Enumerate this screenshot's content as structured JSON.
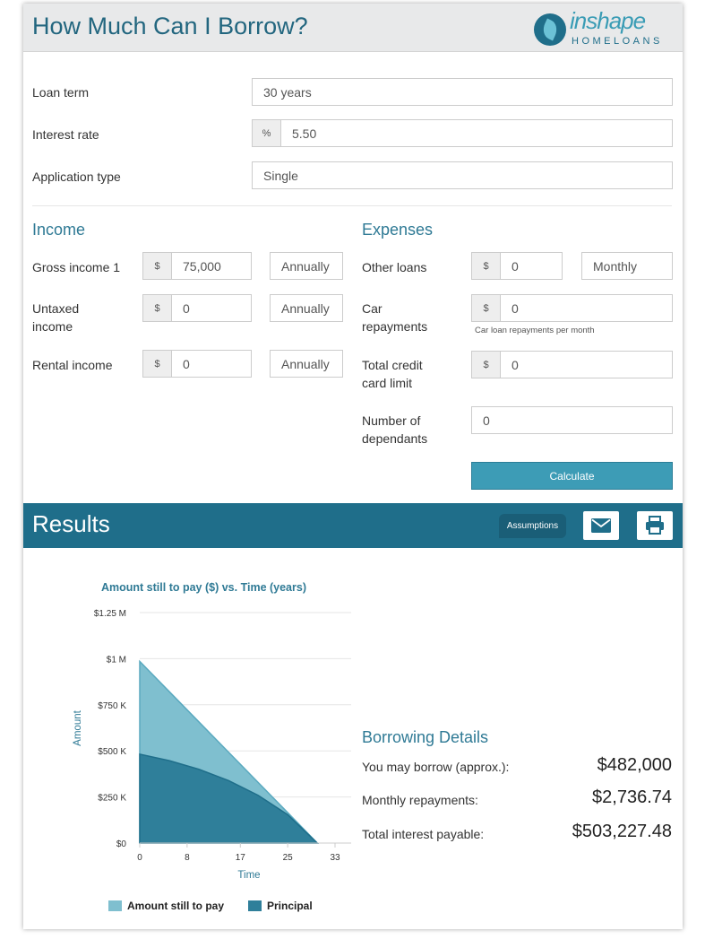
{
  "header": {
    "title": "How Much Can I Borrow?",
    "logo_top": "inshape",
    "logo_bottom": "HOMELOANS"
  },
  "loan_term": {
    "label": "Loan term",
    "value": "30 years"
  },
  "interest_rate": {
    "label": "Interest rate",
    "addon": "%",
    "value": "5.50"
  },
  "application_type": {
    "label": "Application type",
    "value": "Single"
  },
  "income": {
    "title": "Income",
    "gross_income": {
      "label": "Gross income 1",
      "addon": "$",
      "value": "75,000",
      "frequency": "Annually"
    },
    "untaxed_income": {
      "label_line1": "Untaxed",
      "label_line2": "income",
      "addon": "$",
      "value": "0",
      "frequency": "Annually"
    },
    "rental_income": {
      "label": "Rental income",
      "addon": "$",
      "value": "0",
      "frequency": "Annually"
    }
  },
  "expenses": {
    "title": "Expenses",
    "other_loans": {
      "label": "Other loans",
      "addon": "$",
      "value": "0",
      "frequency": "Monthly"
    },
    "car_repayments": {
      "label_line1": "Car",
      "label_line2": "repayments",
      "addon": "$",
      "value": "0",
      "help": "Car loan repayments per month"
    },
    "credit_card": {
      "label_line1": "Total credit",
      "label_line2": "card limit",
      "addon": "$",
      "value": "0"
    },
    "dependants": {
      "label_line1": "Number of",
      "label_line2": "dependants",
      "value": "0"
    }
  },
  "calculate_label": "Calculate",
  "results": {
    "title": "Results",
    "assumptions_label": "Assumptions"
  },
  "chart_data": {
    "type": "area",
    "title": "Amount still to pay ($) vs. Time (years)",
    "xlabel": "Time",
    "ylabel": "Amount",
    "x_ticks": [
      "0",
      "8",
      "17",
      "25",
      "33"
    ],
    "y_ticks": [
      "$0",
      "$250 K",
      "$500 K",
      "$750 K",
      "$1 M",
      "$1.25 M"
    ],
    "xlim": [
      0,
      33
    ],
    "ylim": [
      0,
      1250000
    ],
    "grid": "horizontal",
    "legend": "bottom",
    "series": [
      {
        "name": "Amount still to pay",
        "color": "#7fbfcf",
        "x": [
          0,
          5,
          10,
          15,
          20,
          25,
          30
        ],
        "values": [
          985000,
          821000,
          657000,
          493000,
          329000,
          165000,
          0
        ]
      },
      {
        "name": "Principal",
        "color": "#2f7f9a",
        "x": [
          0,
          5,
          10,
          15,
          20,
          25,
          30
        ],
        "values": [
          482000,
          447000,
          400000,
          339000,
          259000,
          154000,
          0
        ]
      }
    ]
  },
  "borrowing": {
    "title": "Borrowing Details",
    "may_borrow": {
      "label": "You may borrow (approx.):",
      "value": "$482,000"
    },
    "monthly": {
      "label": "Monthly repayments:",
      "value": "$2,736.74"
    },
    "interest": {
      "label": "Total interest payable:",
      "value": "$503,227.48"
    }
  }
}
